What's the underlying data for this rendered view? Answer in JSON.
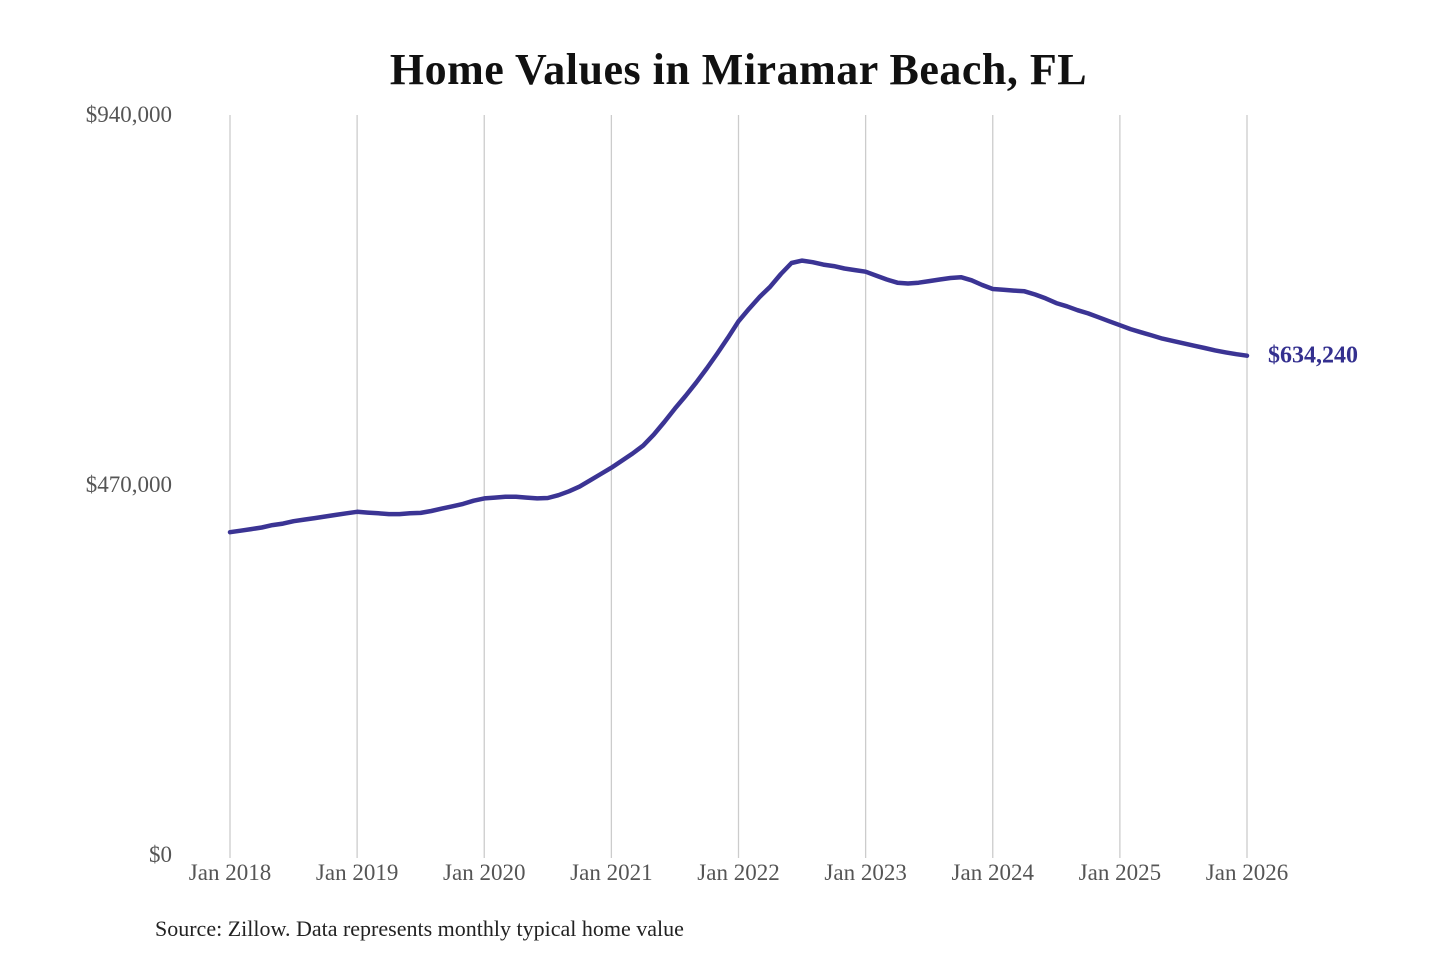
{
  "title": "Home Values in Miramar Beach, FL",
  "source_note": "Source: Zillow. Data represents monthly typical home value",
  "end_label": "$634,240",
  "colors": {
    "background": "#ffffff",
    "line": "#3b3494",
    "end_label": "#34308f",
    "grid": "#cccccc",
    "axis_text": "#555555",
    "title_text": "#111111",
    "source_text": "#222222"
  },
  "chart_data": {
    "type": "line",
    "title": "Home Values in Miramar Beach, FL",
    "xlabel": "",
    "ylabel": "",
    "ylim": [
      0,
      940000
    ],
    "grid": "vertical-yearly",
    "legend": "none",
    "frequency": "monthly",
    "x_start": "Jan 2018",
    "x_end": "Jan 2026",
    "x_tick_labels": [
      "Jan 2018",
      "Jan 2019",
      "Jan 2020",
      "Jan 2021",
      "Jan 2022",
      "Jan 2023",
      "Jan 2024",
      "Jan 2025",
      "Jan 2026"
    ],
    "y_ticks": [
      {
        "label": "$0",
        "value": 0
      },
      {
        "label": "$470,000",
        "value": 470000
      },
      {
        "label": "$940,000",
        "value": 940000
      }
    ],
    "final_value": 634240,
    "final_value_label": "$634,240",
    "series": [
      {
        "name": "Monthly typical home value",
        "values": [
          410000,
          412000,
          414000,
          416000,
          419000,
          421000,
          424000,
          426000,
          428000,
          430000,
          432000,
          434000,
          436000,
          435000,
          434000,
          433000,
          433000,
          434000,
          434500,
          437000,
          440000,
          443000,
          446000,
          450000,
          453000,
          454000,
          455000,
          455000,
          454000,
          453000,
          453500,
          457000,
          462000,
          468000,
          476000,
          484000,
          492000,
          501000,
          510000,
          520000,
          534000,
          550000,
          567000,
          583000,
          600000,
          618000,
          637000,
          657000,
          678000,
          694000,
          709000,
          722000,
          738000,
          752000,
          755000,
          753000,
          750000,
          748000,
          745000,
          743000,
          741000,
          736000,
          731000,
          727000,
          726000,
          727000,
          729000,
          731000,
          733000,
          734000,
          730000,
          724000,
          719000,
          718000,
          717000,
          716000,
          712000,
          707000,
          701000,
          697000,
          692000,
          688000,
          683000,
          678000,
          673000,
          668000,
          664000,
          660000,
          656000,
          653000,
          650000,
          647000,
          644000,
          641000,
          638500,
          636200,
          634240
        ]
      }
    ]
  }
}
